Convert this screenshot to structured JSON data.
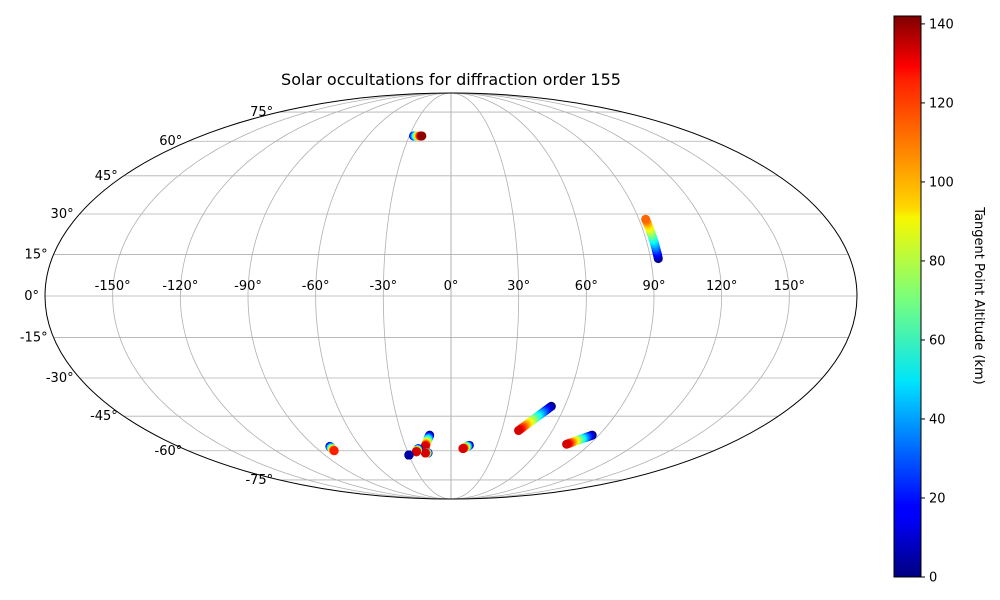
{
  "chart_data": {
    "type": "scatter",
    "projection": "mollweide",
    "title": "Solar occultations for diffraction order 155",
    "grid": true,
    "lon_ticks": [
      -150,
      -120,
      -90,
      -60,
      -30,
      0,
      30,
      60,
      90,
      120,
      150
    ],
    "lon_tick_labels": [
      "-150°",
      "-120°",
      "-90°",
      "-60°",
      "-30°",
      "0°",
      "30°",
      "60°",
      "90°",
      "120°",
      "150°"
    ],
    "lat_ticks": [
      -75,
      -60,
      -45,
      -30,
      -15,
      0,
      15,
      30,
      45,
      60,
      75
    ],
    "lat_tick_labels": [
      "-75°",
      "-60°",
      "-45°",
      "-30°",
      "-15°",
      "0°",
      "15°",
      "30°",
      "45°",
      "60°",
      "75°"
    ],
    "colorbar": {
      "label": "Tangent Point Altitude (km)",
      "colormap": "jet",
      "range": [
        0,
        142
      ],
      "ticks": [
        0,
        20,
        40,
        60,
        80,
        100,
        120,
        140
      ],
      "tick_labels": [
        "0",
        "20",
        "40",
        "60",
        "80",
        "100",
        "120",
        "140"
      ]
    },
    "series": [
      {
        "lon_start": -27,
        "lat_start": 62.5,
        "alt_start": 10,
        "lon_end": -21,
        "lat_end": 62.5,
        "alt_end": 140
      },
      {
        "lon_start": 93.5,
        "lat_start": 13.5,
        "alt_start": 2,
        "lon_end": 93.2,
        "lat_end": 28,
        "alt_end": 110
      },
      {
        "lon_start": 53,
        "lat_start": -41,
        "alt_start": 0,
        "lon_end": 40,
        "lat_end": -51,
        "alt_end": 130
      },
      {
        "lon_start": 86,
        "lat_start": -53,
        "alt_start": 0,
        "lon_end": 75,
        "lat_end": -57,
        "alt_end": 130
      },
      {
        "lon_start": 12,
        "lat_start": -57.5,
        "alt_start": 0,
        "lon_end": 8,
        "lat_end": -59,
        "alt_end": 130
      },
      {
        "lon_start": -13,
        "lat_start": -53,
        "alt_start": 0,
        "lon_end": -17,
        "lat_end": -58,
        "alt_end": 130
      },
      {
        "lon_start": -16,
        "lat_start": -61,
        "alt_start": 0,
        "lon_end": -18,
        "lat_end": -61,
        "alt_end": 130
      },
      {
        "lon_start": -22,
        "lat_start": -59,
        "alt_start": 0,
        "lon_end": -24,
        "lat_end": -60.5,
        "alt_end": 130
      },
      {
        "lon_start": -30,
        "lat_start": -62,
        "alt_start": 0,
        "lon_end": -30,
        "lat_end": -62,
        "alt_end": 5
      },
      {
        "lon_start": -80,
        "lat_start": -58,
        "alt_start": 5,
        "lon_end": -80,
        "lat_end": -60,
        "alt_end": 120
      }
    ]
  }
}
